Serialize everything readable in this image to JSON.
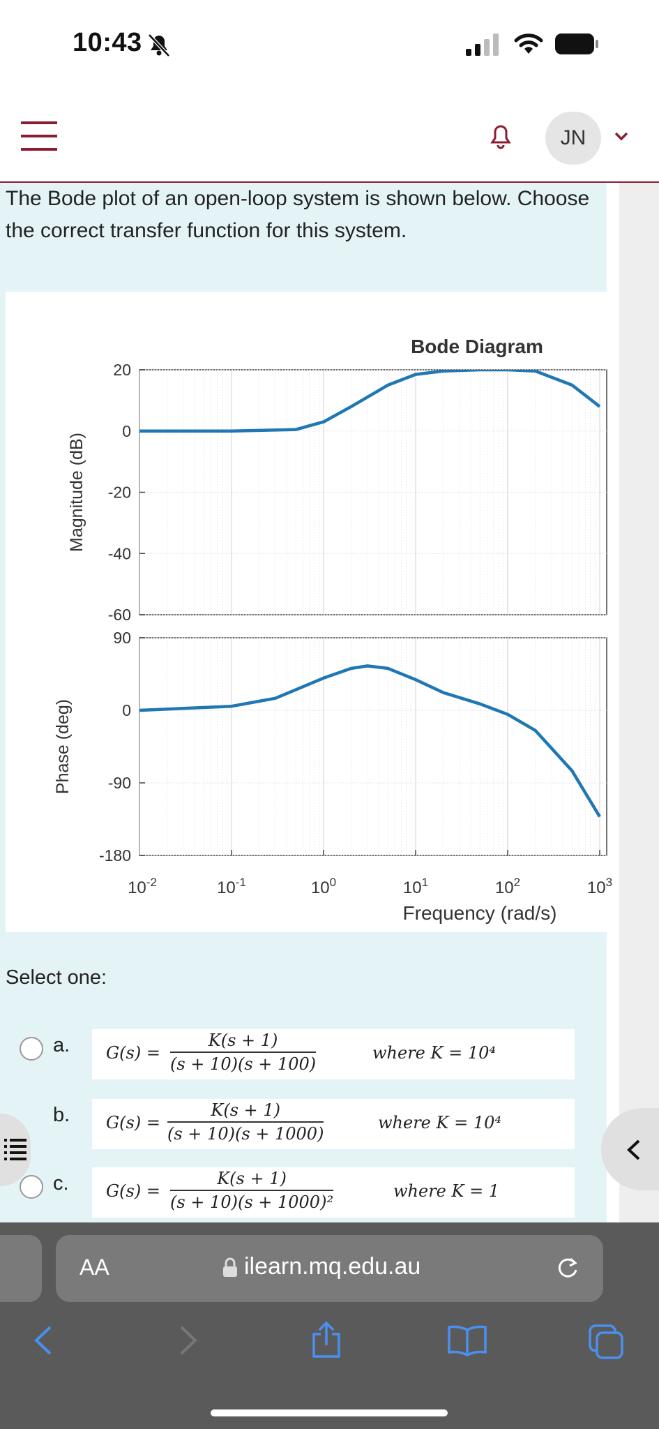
{
  "status_bar": {
    "time": "10:43"
  },
  "header": {
    "avatar_initials": "JN"
  },
  "question": {
    "text": "The Bode plot of an open-loop system is shown below. Choose the correct transfer function for this system."
  },
  "chart_data": {
    "type": "line",
    "title": "Bode Diagram",
    "xlabel": "Frequency (rad/s)",
    "xscale": "log",
    "xlim": [
      0.01,
      1000
    ],
    "xticks": [
      "10^-2",
      "10^-1",
      "10^0",
      "10^1",
      "10^2",
      "10^3"
    ],
    "grid": true,
    "magnitude": {
      "ylabel": "Magnitude (dB)",
      "ylim": [
        -60,
        20
      ],
      "yticks": [
        "20",
        "0",
        "-20",
        "-40",
        "-60"
      ],
      "x": [
        0.01,
        0.1,
        0.5,
        1,
        2,
        5,
        10,
        20,
        50,
        100,
        200,
        500,
        1000
      ],
      "y": [
        0,
        0,
        0.5,
        3,
        8,
        15,
        18.5,
        19.6,
        20,
        20,
        19.6,
        15,
        8
      ]
    },
    "phase": {
      "ylabel": "Phase (deg)",
      "ylim": [
        -180,
        90
      ],
      "yticks": [
        "90",
        "0",
        "-90",
        "-180"
      ],
      "x": [
        0.01,
        0.1,
        0.3,
        1,
        2,
        3,
        5,
        10,
        20,
        50,
        100,
        200,
        500,
        1000
      ],
      "y": [
        0,
        5,
        15,
        40,
        52,
        55,
        52,
        38,
        22,
        8,
        -5,
        -25,
        -75,
        -132
      ]
    }
  },
  "select_label": "Select one:",
  "options": [
    {
      "letter": "a.",
      "lhs": "G(s) =",
      "num": "K(s + 1)",
      "den": "(s + 10)(s + 100)",
      "where": "where K = 10⁴"
    },
    {
      "letter": "b.",
      "lhs": "G(s) =",
      "num": "K(s + 1)",
      "den": "(s + 10)(s + 1000)",
      "where": "where K = 10⁴"
    },
    {
      "letter": "c.",
      "lhs": "G(s) =",
      "num": "K(s + 1)",
      "den": "(s + 10)(s + 1000)²",
      "where": "where K = 1"
    }
  ],
  "browser": {
    "text_size_label": "AA",
    "url": "ilearn.mq.edu.au"
  },
  "colors": {
    "accent": "#8b1d33",
    "plot_line": "#1f77b4",
    "content_bg": "#e4f3f6"
  },
  "icons": [
    "menu-icon",
    "bell-icon",
    "chevron-down-icon",
    "signal-icon",
    "wifi-icon",
    "battery-icon",
    "silent-icon",
    "list-icon",
    "chevron-left-icon",
    "lock-icon",
    "reload-icon",
    "back-icon",
    "forward-icon",
    "share-icon",
    "bookmarks-icon",
    "tabs-icon"
  ]
}
